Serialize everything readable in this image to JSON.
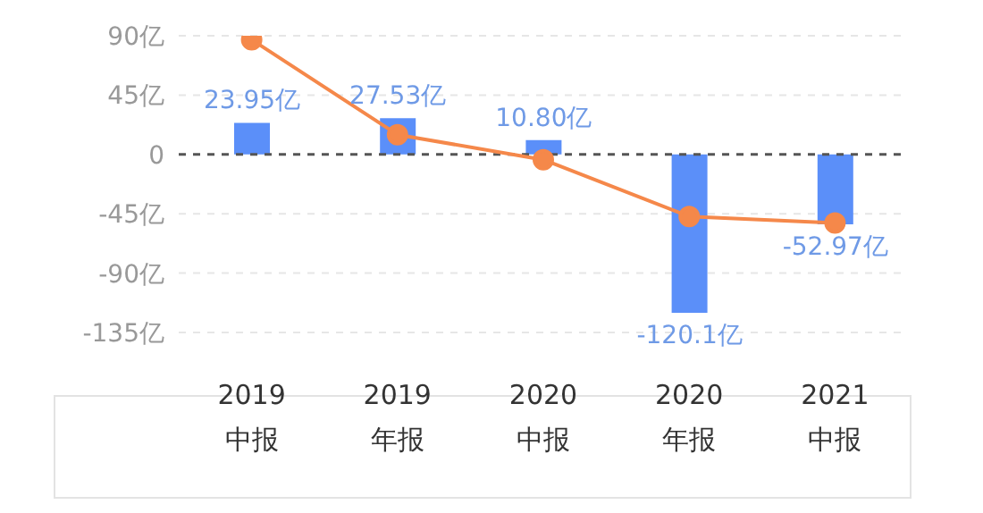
{
  "chart_data": {
    "type": "bar",
    "categories": [
      "2019 中报",
      "2019 年报",
      "2020 中报",
      "2020 年报",
      "2021 中报"
    ],
    "series": [
      {
        "color": "#5b8ff9",
        "values": [
          23.95,
          27.53,
          10.8,
          -120.1,
          -52.97
        ],
        "value_labels": [
          "23.95亿",
          "27.53亿",
          "10.80亿",
          "-120.1亿",
          "-52.97亿"
        ]
      },
      {
        "type": "line",
        "color": "#f5884a",
        "values": [
          87,
          15,
          -4,
          -47,
          -52
        ],
        "marker": "circle"
      }
    ],
    "ylim": [
      -135,
      90
    ],
    "yticks": [
      {
        "value": -135,
        "label": "-135亿"
      },
      {
        "value": -90,
        "label": "-90亿"
      },
      {
        "value": -45,
        "label": "-45亿"
      },
      {
        "value": 0,
        "label": "0"
      },
      {
        "value": 45,
        "label": "45亿"
      },
      {
        "value": 90,
        "label": "90亿"
      }
    ],
    "grid": "y",
    "legend": false,
    "ref_lines": [
      {
        "axis": "y",
        "value": 0,
        "color": "#555555",
        "line_style": "dashed"
      }
    ]
  }
}
